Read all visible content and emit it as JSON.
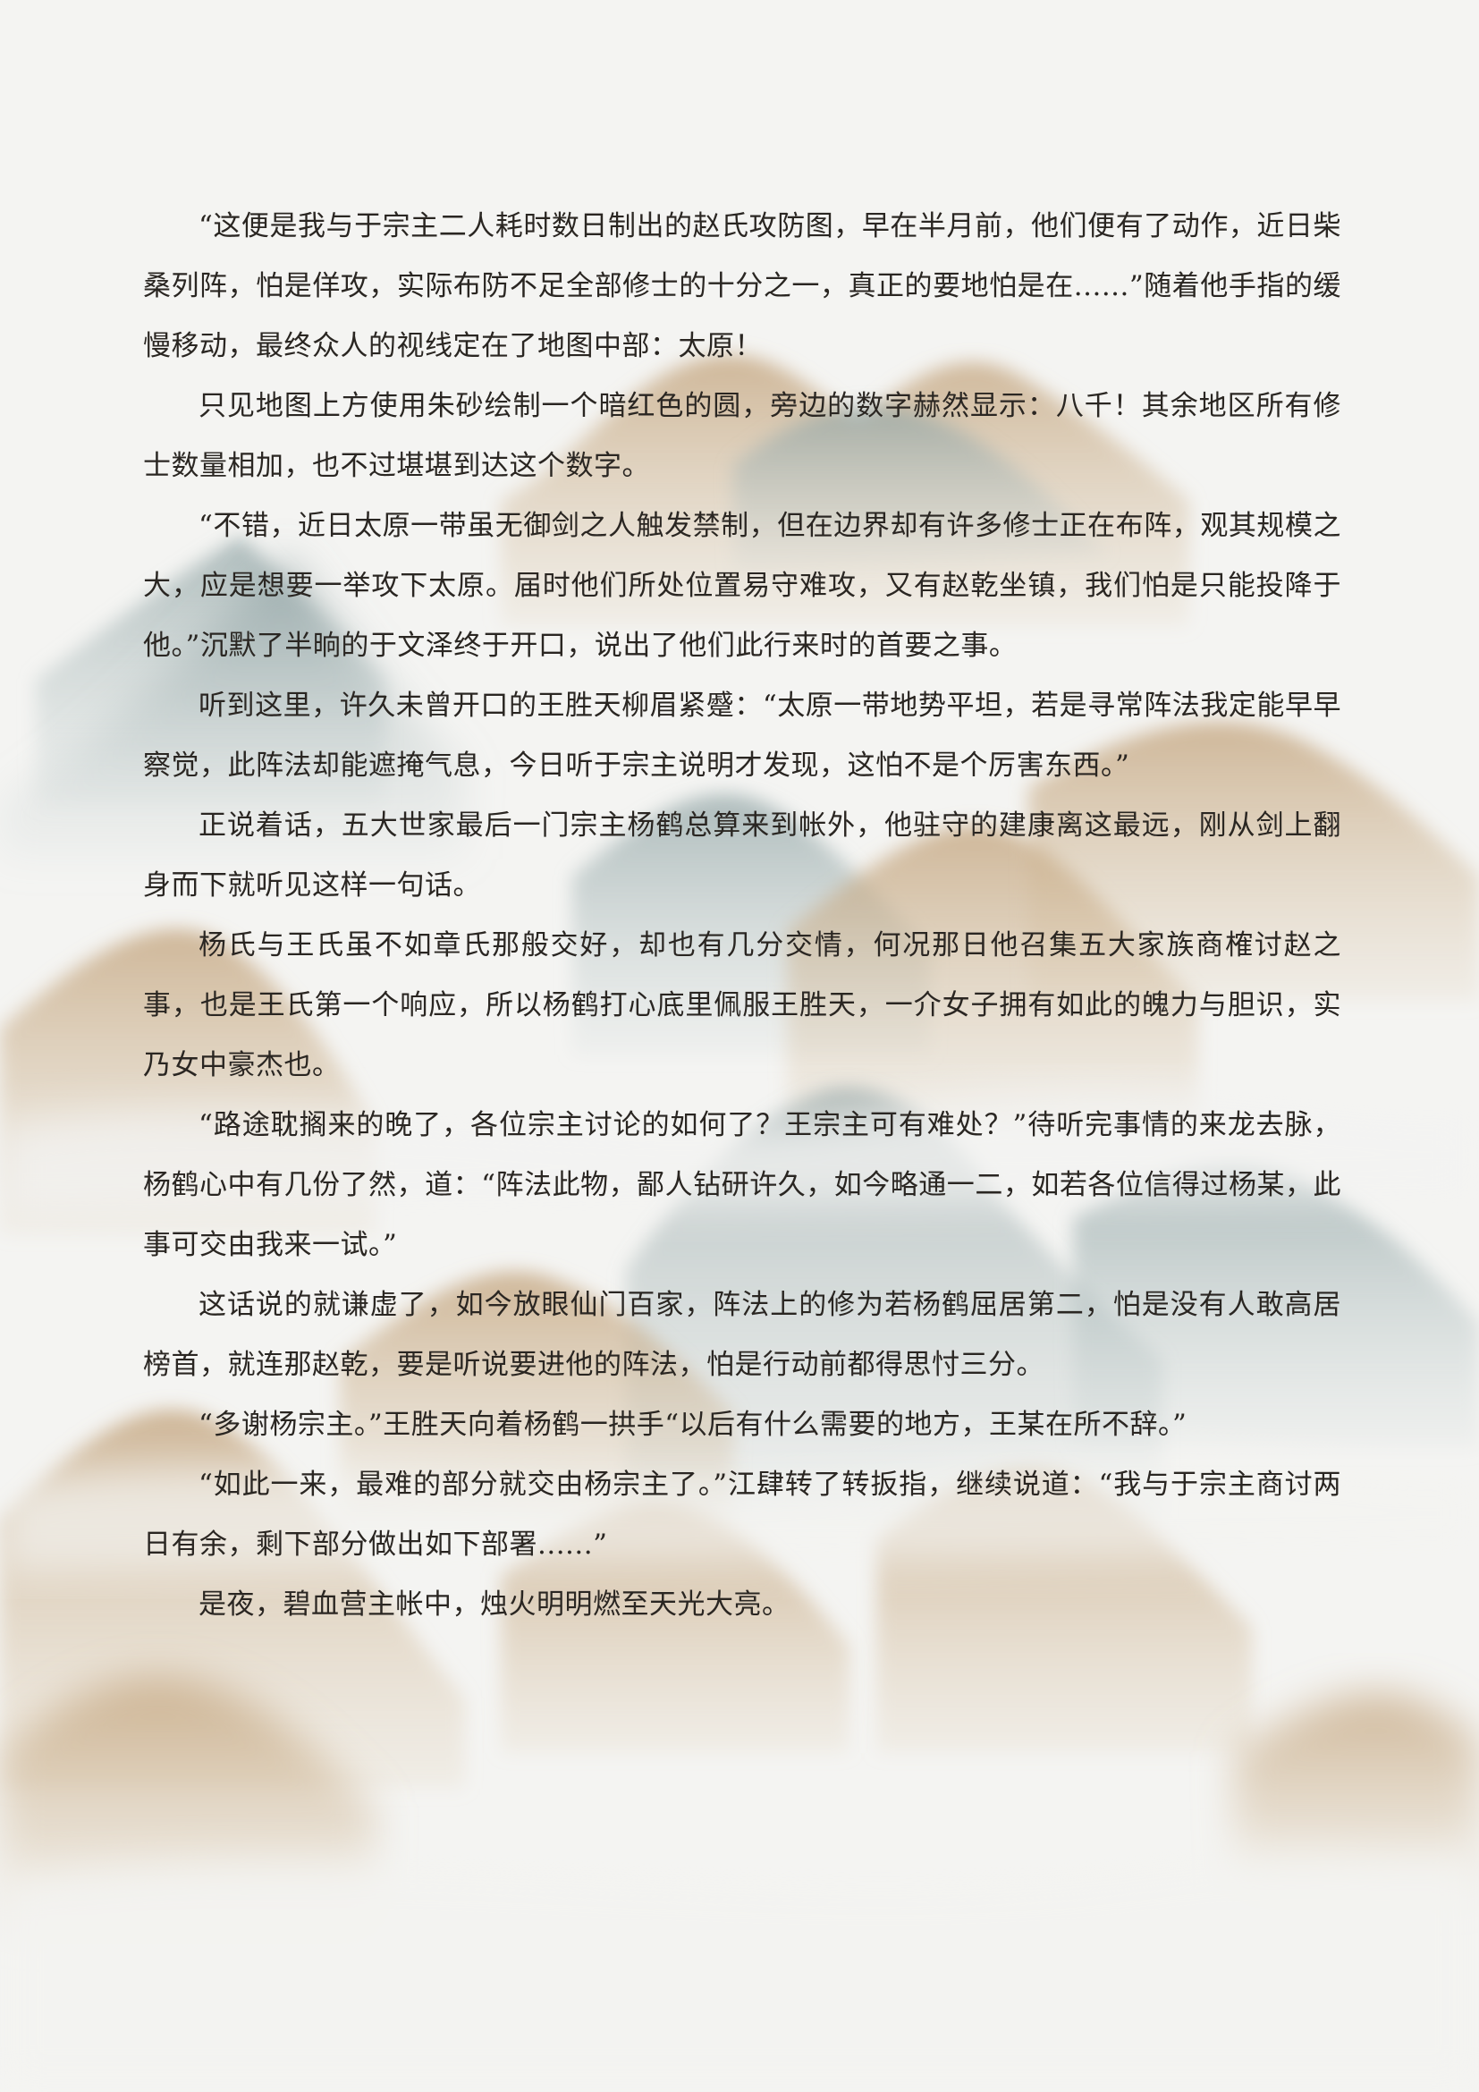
{
  "paragraphs": [
    "“这便是我与于宗主二人耗时数日制出的赵氏攻防图，早在半月前，他们便有了动作，近日柴桑列阵，怕是佯攻，实际布防不足全部修士的十分之一，真正的要地怕是在......”随着他手指的缓慢移动，最终众人的视线定在了地图中部：太原！",
    "只见地图上方使用朱砂绘制一个暗红色的圆，旁边的数字赫然显示：八千！其余地区所有修士数量相加，也不过堪堪到达这个数字。",
    "“不错，近日太原一带虽无御剑之人触发禁制，但在边界却有许多修士正在布阵，观其规模之大，应是想要一举攻下太原。届时他们所处位置易守难攻，又有赵乾坐镇，我们怕是只能投降于他。”沉默了半晌的于文泽终于开口，说出了他们此行来时的首要之事。",
    "听到这里，许久未曾开口的王胜天柳眉紧蹙：“太原一带地势平坦，若是寻常阵法我定能早早察觉，此阵法却能遮掩气息，今日听于宗主说明才发现，这怕不是个厉害东西。”",
    "正说着话，五大世家最后一门宗主杨鹤总算来到帐外，他驻守的建康离这最远，刚从剑上翻身而下就听见这样一句话。",
    "杨氏与王氏虽不如章氏那般交好，却也有几分交情，何况那日他召集五大家族商榷讨赵之事，也是王氏第一个响应，所以杨鹤打心底里佩服王胜天，一介女子拥有如此的魄力与胆识，实乃女中豪杰也。",
    "“路途耽搁来的晚了，各位宗主讨论的如何了？王宗主可有难处？”待听完事情的来龙去脉，杨鹤心中有几份了然，道：“阵法此物，鄙人钻研许久，如今略通一二，如若各位信得过杨某，此事可交由我来一试。”",
    "这话说的就谦虚了，如今放眼仙门百家，阵法上的修为若杨鹤屈居第二，怕是没有人敢高居榜首，就连那赵乾，要是听说要进他的阵法，怕是行动前都得思忖三分。",
    "“多谢杨宗主。”王胜天向着杨鹤一拱手“以后有什么需要的地方，王某在所不辞。”",
    "“如此一来，最难的部分就交由杨宗主了。”江肆转了转扳指，继续说道：“我与于宗主商讨两日有余，剩下部分做出如下部署......”",
    "是夜，碧血营主帐中，烛火明明燃至天光大亮。"
  ],
  "colors": {
    "background": "#f3f3f1",
    "text": "#2a2622",
    "mountain_ochre": "#c8ad88",
    "mountain_teal": "#9fb0b0"
  }
}
